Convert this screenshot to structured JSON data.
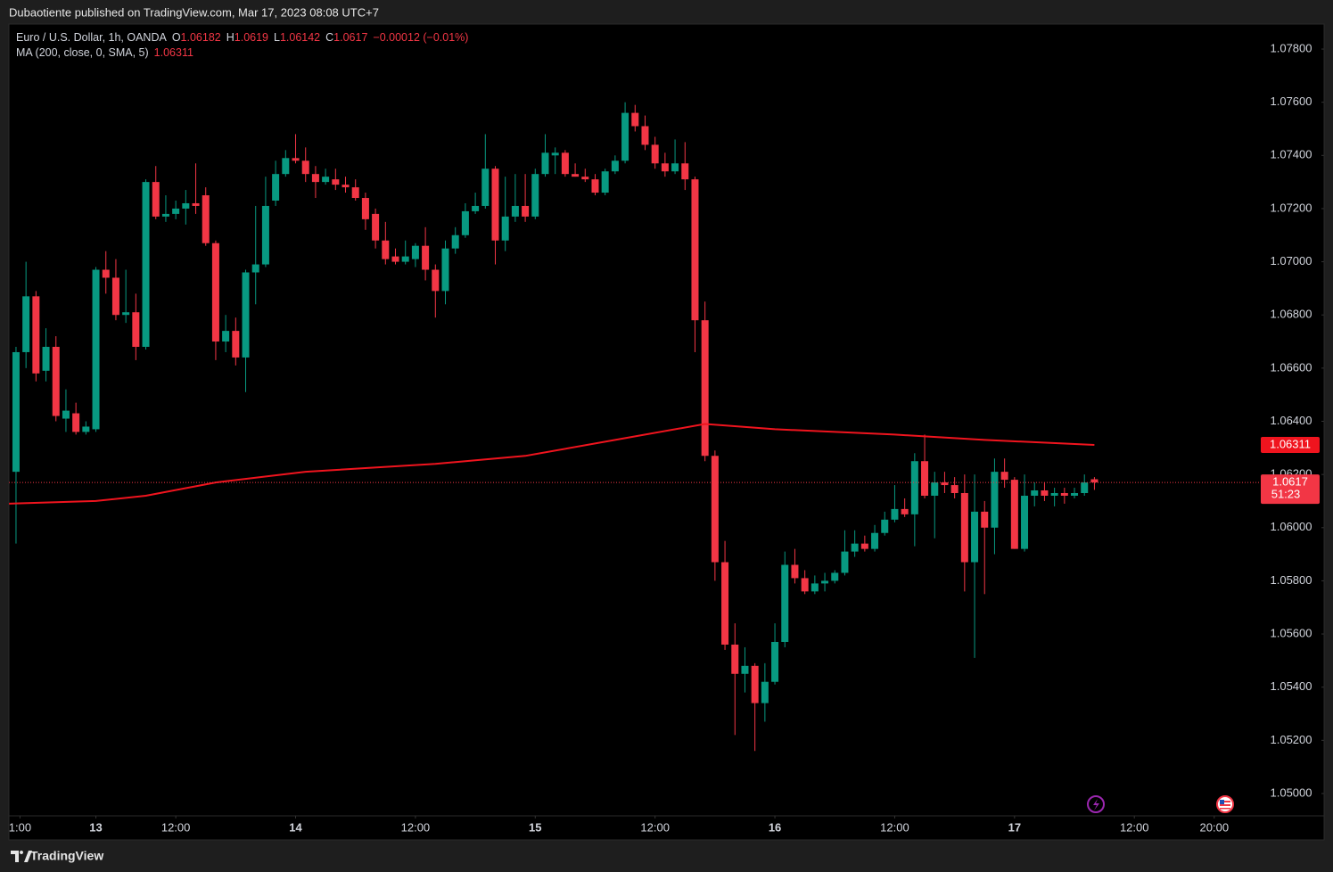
{
  "header": {
    "text": "Dubaotiente published on TradingView.com, Mar 17, 2023 08:08 UTC+7"
  },
  "footer": {
    "brand": "TradingView"
  },
  "chart_data": {
    "type": "candlestick",
    "legend": {
      "symbol": "Euro / U.S. Dollar, 1h, OANDA",
      "o": "O",
      "h": "H",
      "l": "L",
      "c": "C",
      "change": "−0.00012 (−0.01%)"
    },
    "up_color": "#089981",
    "down_color": "#f23645",
    "open": [
      1.0621,
      1.0666,
      1.0687,
      1.0659,
      1.0668,
      1.0641,
      1.0643,
      1.0636,
      1.0637,
      1.0697,
      1.0694,
      1.068,
      1.0681,
      1.0668,
      1.073,
      1.0717,
      1.0718,
      1.072,
      1.0722,
      1.0725,
      1.0707,
      1.067,
      1.0674,
      1.0664,
      1.0696,
      1.0699,
      1.0723,
      1.0733,
      1.0739,
      1.0738,
      1.0733,
      1.073,
      1.0731,
      1.0729,
      1.0728,
      1.0724,
      1.0718,
      1.0708,
      1.0702,
      1.07,
      1.0701,
      1.0706,
      1.0697,
      1.0689,
      1.0705,
      1.071,
      1.0719,
      1.0721,
      1.0735,
      1.0708,
      1.0717,
      1.0721,
      1.0717,
      1.0733,
      1.074,
      1.0741,
      1.0733,
      1.0732,
      1.0731,
      1.0726,
      1.0734,
      1.0738,
      1.0756,
      1.0751,
      1.0744,
      1.0737,
      1.0734,
      1.0737,
      1.0731,
      1.0678,
      1.0627,
      1.0587,
      1.0556,
      1.0545,
      1.0548,
      1.0534,
      1.0542,
      1.0557,
      1.0586,
      1.0581,
      1.0576,
      1.0579,
      1.058,
      1.0583,
      1.0591,
      1.0594,
      1.0592,
      1.0598,
      1.0603,
      1.0607,
      1.0605,
      1.0625,
      1.0612,
      1.0617,
      1.0616,
      1.0613,
      1.0587,
      1.0606,
      1.06,
      1.0621,
      1.0618,
      1.0592,
      1.0612,
      1.0614,
      1.0612,
      1.0613,
      1.0612,
      1.0613,
      1.06182
    ],
    "high": [
      1.0668,
      1.07,
      1.0689,
      1.0675,
      1.0672,
      1.0652,
      1.0647,
      1.064,
      1.0698,
      1.0704,
      1.0701,
      1.0697,
      1.0688,
      1.0731,
      1.0736,
      1.0725,
      1.0723,
      1.0727,
      1.0737,
      1.0728,
      1.0708,
      1.068,
      1.0679,
      1.0697,
      1.0721,
      1.0732,
      1.0738,
      1.0742,
      1.0748,
      1.0743,
      1.0736,
      1.0735,
      1.0735,
      1.0732,
      1.0731,
      1.0726,
      1.072,
      1.0715,
      1.0705,
      1.0708,
      1.0707,
      1.0713,
      1.0699,
      1.0708,
      1.0713,
      1.0722,
      1.0726,
      1.0748,
      1.0736,
      1.0732,
      1.0733,
      1.0733,
      1.0735,
      1.0748,
      1.0743,
      1.0742,
      1.0737,
      1.0735,
      1.0733,
      1.0735,
      1.074,
      1.076,
      1.0759,
      1.0755,
      1.0747,
      1.0741,
      1.0746,
      1.0745,
      1.0732,
      1.0685,
      1.0629,
      1.0595,
      1.0564,
      1.0555,
      1.0549,
      1.0549,
      1.0564,
      1.0591,
      1.0592,
      1.0584,
      1.0582,
      1.0583,
      1.0584,
      1.0599,
      1.0599,
      1.0597,
      1.0601,
      1.0606,
      1.0616,
      1.0611,
      1.0628,
      1.0635,
      1.0621,
      1.0621,
      1.0619,
      1.062,
      1.062,
      1.061,
      1.0626,
      1.0626,
      1.0619,
      1.062,
      1.0617,
      1.0617,
      1.0615,
      1.0615,
      1.0615,
      1.062,
      1.0619
    ],
    "low": [
      1.0594,
      1.066,
      1.0655,
      1.0655,
      1.064,
      1.0636,
      1.0635,
      1.0635,
      1.0636,
      1.0688,
      1.0678,
      1.0677,
      1.0663,
      1.0667,
      1.0716,
      1.0715,
      1.0716,
      1.0714,
      1.0718,
      1.0706,
      1.0663,
      1.0666,
      1.0661,
      1.0651,
      1.0684,
      1.0698,
      1.0721,
      1.0732,
      1.0737,
      1.073,
      1.0724,
      1.0729,
      1.0727,
      1.0726,
      1.0723,
      1.0712,
      1.0705,
      1.0699,
      1.0699,
      1.0699,
      1.0698,
      1.0693,
      1.0679,
      1.0684,
      1.0703,
      1.0709,
      1.0718,
      1.072,
      1.0699,
      1.0704,
      1.0715,
      1.0715,
      1.0716,
      1.0732,
      1.0733,
      1.0732,
      1.0732,
      1.073,
      1.0725,
      1.0725,
      1.0733,
      1.0737,
      1.0749,
      1.0742,
      1.0735,
      1.0732,
      1.0733,
      1.0727,
      1.0666,
      1.0625,
      1.058,
      1.0554,
      1.0522,
      1.0538,
      1.0516,
      1.0527,
      1.0541,
      1.0555,
      1.0579,
      1.0575,
      1.0575,
      1.0576,
      1.0579,
      1.0582,
      1.0589,
      1.0591,
      1.0591,
      1.0597,
      1.0602,
      1.0604,
      1.0593,
      1.0611,
      1.0596,
      1.0613,
      1.0611,
      1.0576,
      1.0551,
      1.0575,
      1.059,
      1.0615,
      1.0592,
      1.0591,
      1.0608,
      1.061,
      1.0608,
      1.0609,
      1.0611,
      1.0612,
      1.06142
    ],
    "close": [
      1.0666,
      1.0687,
      1.0658,
      1.0668,
      1.0642,
      1.0644,
      1.0636,
      1.0638,
      1.0697,
      1.0694,
      1.068,
      1.0681,
      1.0668,
      1.073,
      1.0717,
      1.0718,
      1.072,
      1.0722,
      1.0721,
      1.0707,
      1.067,
      1.0674,
      1.0664,
      1.0696,
      1.0699,
      1.0721,
      1.0733,
      1.0739,
      1.0738,
      1.0733,
      1.073,
      1.0732,
      1.0729,
      1.0728,
      1.0724,
      1.0716,
      1.0708,
      1.0701,
      1.07,
      1.0702,
      1.0706,
      1.0697,
      1.0689,
      1.0705,
      1.071,
      1.0719,
      1.0721,
      1.0735,
      1.0708,
      1.0717,
      1.0721,
      1.0717,
      1.0733,
      1.0741,
      1.0741,
      1.0733,
      1.0732,
      1.0731,
      1.0726,
      1.0734,
      1.0738,
      1.0756,
      1.0751,
      1.0744,
      1.0737,
      1.0734,
      1.0737,
      1.0731,
      1.0678,
      1.0627,
      1.0587,
      1.0556,
      1.0545,
      1.0548,
      1.0534,
      1.0542,
      1.0557,
      1.0586,
      1.0581,
      1.0576,
      1.0579,
      1.058,
      1.0583,
      1.0591,
      1.0594,
      1.0592,
      1.0598,
      1.0603,
      1.0607,
      1.0605,
      1.0625,
      1.0612,
      1.0617,
      1.0616,
      1.0613,
      1.0587,
      1.0606,
      1.06,
      1.0621,
      1.0618,
      1.0592,
      1.0612,
      1.0614,
      1.0612,
      1.0613,
      1.0612,
      1.0613,
      1.0617,
      1.0617
    ],
    "ma": {
      "name": "MA (200, close, 0, SMA, 5)",
      "color": "#f0141e",
      "x": [
        -0.7,
        8,
        13,
        20,
        29,
        42,
        51,
        60,
        69,
        76,
        88,
        97,
        108
      ],
      "values": [
        1.0609,
        1.061,
        1.0612,
        1.0617,
        1.0621,
        1.0624,
        1.0627,
        1.0633,
        1.0639,
        1.0637,
        1.0635,
        1.0633,
        1.06311
      ]
    },
    "countdown": "51:23",
    "xlim": [
      -0.71,
      131
    ],
    "ylim": [
      1.04916,
      1.07894
    ],
    "yticks": [
      {
        "value": 1.078,
        "label": "1.07800"
      },
      {
        "value": 1.076,
        "label": "1.07600"
      },
      {
        "value": 1.074,
        "label": "1.07400"
      },
      {
        "value": 1.072,
        "label": "1.07200"
      },
      {
        "value": 1.07,
        "label": "1.07000"
      },
      {
        "value": 1.068,
        "label": "1.06800"
      },
      {
        "value": 1.066,
        "label": "1.06600"
      },
      {
        "value": 1.064,
        "label": "1.06400"
      },
      {
        "value": 1.062,
        "label": "1.06200"
      },
      {
        "value": 1.06,
        "label": "1.06000"
      },
      {
        "value": 1.058,
        "label": "1.05800"
      },
      {
        "value": 1.056,
        "label": "1.05600"
      },
      {
        "value": 1.054,
        "label": "1.05400"
      },
      {
        "value": 1.052,
        "label": "1.05200"
      },
      {
        "value": 1.05,
        "label": "1.05000"
      }
    ],
    "xticks": [
      {
        "value": 0.4,
        "label": "1:00"
      },
      {
        "value": 8,
        "label": "13",
        "bold": true
      },
      {
        "value": 16,
        "label": "12:00"
      },
      {
        "value": 28,
        "label": "14",
        "bold": true
      },
      {
        "value": 40,
        "label": "12:00"
      },
      {
        "value": 52,
        "label": "15",
        "bold": true
      },
      {
        "value": 64,
        "label": "12:00"
      },
      {
        "value": 76,
        "label": "16",
        "bold": true
      },
      {
        "value": 88,
        "label": "12:00"
      },
      {
        "value": 100,
        "label": "17",
        "bold": true
      },
      {
        "value": 112,
        "label": "12:00"
      },
      {
        "value": 120,
        "label": "20:00"
      }
    ]
  }
}
